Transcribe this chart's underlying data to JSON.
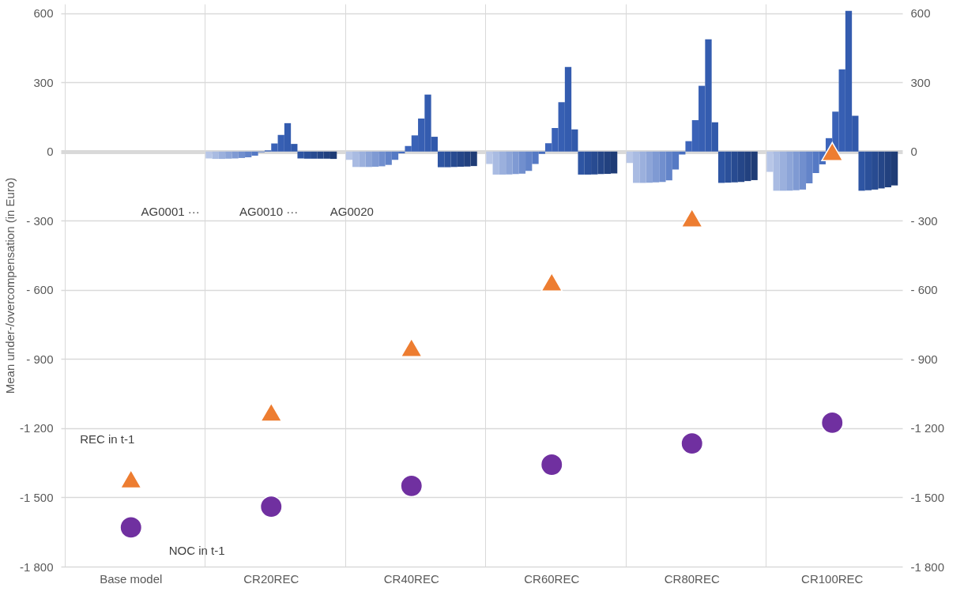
{
  "chart_data": {
    "type": "bar",
    "ylabel": "Mean under-/overcompensation (in Euro)",
    "categories": [
      "Base model",
      "CR20REC",
      "CR40REC",
      "CR60REC",
      "CR80REC",
      "CR100REC"
    ],
    "series": [
      {
        "color": "#b7c6e7",
        "values": [
          null,
          -30,
          -36,
          -54,
          -50,
          -88
        ]
      },
      {
        "color": "#a9bbe2",
        "values": [
          null,
          -32,
          -67,
          -100,
          -136,
          -170
        ]
      },
      {
        "color": "#9bb0dd",
        "values": [
          null,
          -32,
          -67,
          -100,
          -136,
          -170
        ]
      },
      {
        "color": "#8da5d8",
        "values": [
          null,
          -31,
          -67,
          -99,
          -135,
          -170
        ]
      },
      {
        "color": "#7f9ad3",
        "values": [
          null,
          -30,
          -66,
          -98,
          -134,
          -168
        ]
      },
      {
        "color": "#718fce",
        "values": [
          null,
          -28,
          -64,
          -96,
          -132,
          -165
        ]
      },
      {
        "color": "#6384c9",
        "values": [
          null,
          -25,
          -58,
          -84,
          -125,
          -138
        ]
      },
      {
        "color": "#5579c4",
        "values": [
          null,
          -18,
          -36,
          -54,
          -78,
          -93
        ]
      },
      {
        "color": "#476ebf",
        "values": [
          null,
          -3,
          -8,
          -10,
          -13,
          -56
        ]
      },
      {
        "color": "#3d65bb",
        "values": [
          null,
          5,
          24,
          36,
          45,
          58
        ]
      },
      {
        "color": "#3a62b7",
        "values": [
          null,
          35,
          70,
          102,
          136,
          173
        ]
      },
      {
        "color": "#375fb3",
        "values": [
          null,
          72,
          143,
          214,
          285,
          356
        ]
      },
      {
        "color": "#345caf",
        "values": [
          null,
          123,
          247,
          367,
          487,
          610
        ]
      },
      {
        "color": "#3159ab",
        "values": [
          null,
          33,
          64,
          96,
          127,
          155
        ]
      },
      {
        "color": "#2e55a3",
        "values": [
          null,
          -30,
          -68,
          -100,
          -136,
          -170
        ]
      },
      {
        "color": "#2b509a",
        "values": [
          null,
          -31,
          -68,
          -100,
          -135,
          -168
        ]
      },
      {
        "color": "#284b91",
        "values": [
          null,
          -31,
          -67,
          -99,
          -134,
          -165
        ]
      },
      {
        "color": "#254688",
        "values": [
          null,
          -31,
          -66,
          -98,
          -132,
          -160
        ]
      },
      {
        "color": "#22417f",
        "values": [
          null,
          -31,
          -65,
          -97,
          -128,
          -155
        ]
      },
      {
        "color": "#1f3c76",
        "values": [
          null,
          -32,
          -63,
          -95,
          -124,
          -147
        ]
      },
      {
        "name": "REC in t-1",
        "type": "scatter",
        "marker": "triangle",
        "color": "#ed7d31",
        "values": [
          -1420,
          -1130,
          -850,
          -566,
          -288,
          0
        ]
      },
      {
        "name": "NOC in t-1",
        "type": "scatter",
        "marker": "circle",
        "color": "#7030a0",
        "values": [
          -1630,
          -1540,
          -1450,
          -1358,
          -1266,
          -1176
        ]
      }
    ],
    "ylim": [
      -1800,
      640
    ],
    "yticks": [
      {
        "value": -1800,
        "label": "-1 800"
      },
      {
        "value": -1500,
        "label": "-1 500"
      },
      {
        "value": -1200,
        "label": "-1 200"
      },
      {
        "value": -900,
        "label": "- 900"
      },
      {
        "value": -600,
        "label": "- 600"
      },
      {
        "value": -300,
        "label": "- 300"
      },
      0,
      300,
      600
    ],
    "y2lim": [
      -1800,
      640
    ],
    "y2ticks": [
      {
        "value": -1800,
        "label": "-1 800"
      },
      {
        "value": -1500,
        "label": "-1 500"
      },
      {
        "value": -1200,
        "label": "-1 200"
      },
      {
        "value": -900,
        "label": "- 900"
      },
      {
        "value": -600,
        "label": "- 600"
      },
      {
        "value": -300,
        "label": "- 300"
      },
      0,
      300,
      600
    ],
    "annotations": [
      "AG0001 ···",
      "AG0010 ···",
      "AG0020"
    ],
    "grid": true
  }
}
